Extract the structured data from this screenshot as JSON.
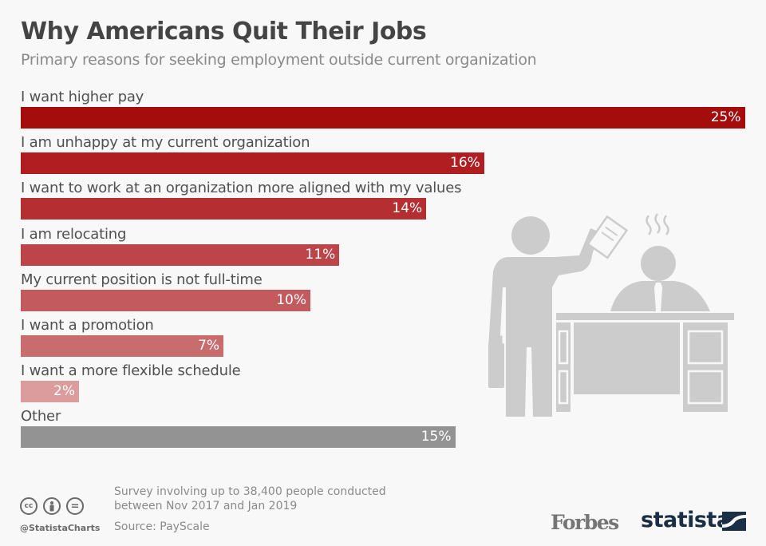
{
  "header": {
    "title": "Why Americans Quit Their Jobs",
    "subtitle": "Primary reasons for seeking employment outside current organization"
  },
  "chart_data": {
    "type": "bar",
    "orientation": "horizontal",
    "title": "Why Americans Quit Their Jobs",
    "subtitle": "Primary reasons for seeking employment outside current organization",
    "categories": [
      "I want higher pay",
      "I am unhappy at my current organization",
      "I want to work at an organization more aligned with my values",
      "I am relocating",
      "My current position is not full-time",
      "I want a promotion",
      "I want a more flexible schedule",
      "Other"
    ],
    "values": [
      25,
      16,
      14,
      11,
      10,
      7,
      2,
      15
    ],
    "value_labels": [
      "25%",
      "16%",
      "14%",
      "11%",
      "10%",
      "7%",
      "2%",
      "15%"
    ],
    "colors": [
      "#a50c0c",
      "#b01e22",
      "#b42e32",
      "#bd4448",
      "#c35a5d",
      "#c96c6e",
      "#dc9c9d",
      "#939393"
    ],
    "unit": "%",
    "grid": false,
    "legend": "none"
  },
  "footer": {
    "note_line1": "Survey involving up to 38,400 people conducted",
    "note_line2": "between Nov 2017 and Jan 2019",
    "source": "Source: PayScale",
    "handle": "@StatistaCharts",
    "cc_icons": [
      "cc-icon",
      "by-icon",
      "nd-icon"
    ],
    "cc_glyph": "cc",
    "nd_glyph": "=",
    "forbes_logo": "Forbes",
    "statista_logo": "statista"
  },
  "illustration": {
    "name": "person-resigning-illustration",
    "color": "#cccccc"
  }
}
